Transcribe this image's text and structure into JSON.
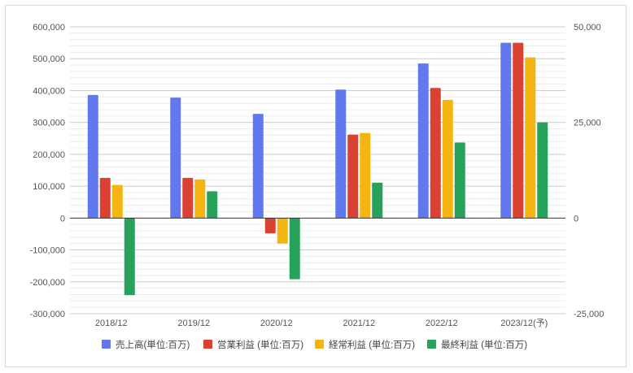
{
  "chart_data": {
    "type": "bar",
    "title": "",
    "xlabel": "",
    "ylabel": "",
    "categories": [
      "2018/12",
      "2019/12",
      "2020/12",
      "2021/12",
      "2022/12",
      "2023/12(予)"
    ],
    "series": [
      {
        "name": "売上高(単位:百万)",
        "color": "#6178ee",
        "values": [
          386000,
          378000,
          327000,
          403000,
          485000,
          550000
        ]
      },
      {
        "name": "営業利益 (単位:百万)",
        "color": "#d94132",
        "values": [
          126000,
          126000,
          -48000,
          262000,
          408000,
          550000
        ]
      },
      {
        "name": "経常利益 (単位:百万)",
        "color": "#f4b512",
        "values": [
          104000,
          121000,
          -80000,
          267000,
          371000,
          504000
        ]
      },
      {
        "name": "最終利益 (単位:百万)",
        "color": "#26a25b",
        "values": [
          -242000,
          84000,
          -192000,
          111000,
          237000,
          300000
        ]
      }
    ],
    "y_left": {
      "lim": [
        -300000,
        600000
      ],
      "ticks": [
        "600,000",
        "500,000",
        "400,000",
        "300,000",
        "200,000",
        "100,000",
        "0",
        "-100,000",
        "-200,000",
        "-300,000"
      ]
    },
    "y_right": {
      "lim": [
        -25000,
        50000
      ],
      "ticks": [
        "50,000",
        "25,000",
        "0",
        "-25,000"
      ]
    },
    "grid": true,
    "legend_position": "bottom"
  }
}
